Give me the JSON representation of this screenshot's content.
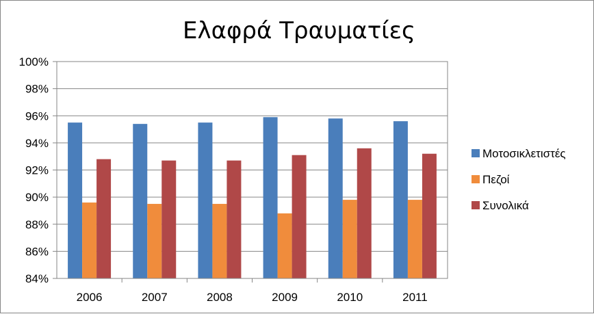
{
  "chart_data": {
    "type": "bar",
    "title": "Ελαφρά Τραυματίες",
    "xlabel": "",
    "ylabel": "",
    "categories": [
      "2006",
      "2007",
      "2008",
      "2009",
      "2010",
      "2011"
    ],
    "series": [
      {
        "name": "Μοτοσικλετιστές",
        "color": "#4a7ebb",
        "values": [
          95.5,
          95.4,
          95.5,
          95.9,
          95.8,
          95.6
        ]
      },
      {
        "name": "Πεζοί",
        "color": "#f08c3c",
        "values": [
          89.6,
          89.5,
          89.5,
          88.8,
          89.8,
          89.8
        ]
      },
      {
        "name": "Συνολικά",
        "color": "#b04848",
        "values": [
          92.8,
          92.7,
          92.7,
          93.1,
          93.6,
          93.2
        ]
      }
    ],
    "ylim": [
      84,
      100
    ],
    "yticks": [
      84,
      86,
      88,
      90,
      92,
      94,
      96,
      98,
      100
    ],
    "ytick_labels": [
      "84%",
      "86%",
      "88%",
      "90%",
      "92%",
      "94%",
      "96%",
      "98%",
      "100%"
    ],
    "grid": true,
    "legend_position": "right"
  }
}
